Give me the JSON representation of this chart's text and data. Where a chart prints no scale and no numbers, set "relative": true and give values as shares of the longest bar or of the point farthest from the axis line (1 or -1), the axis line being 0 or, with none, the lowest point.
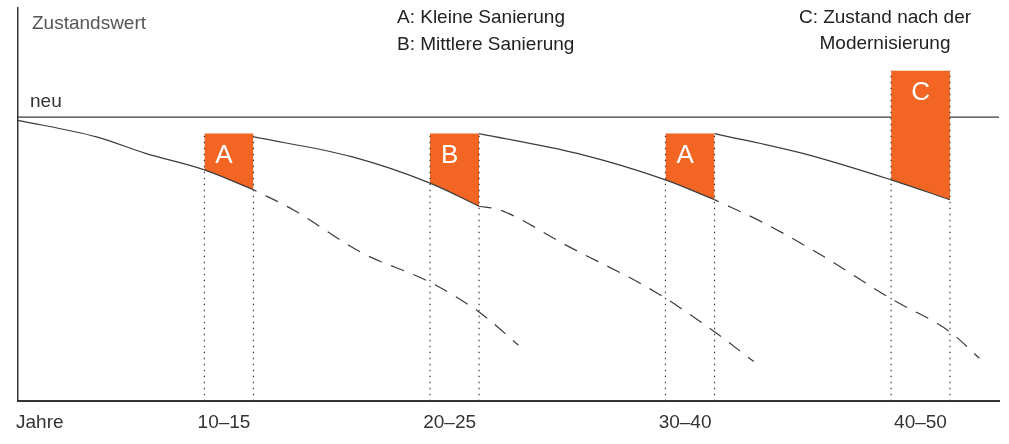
{
  "chart_data": {
    "type": "line",
    "relative": true,
    "ylabel": "Zustandswert",
    "xlabel": "Jahre",
    "legend": false,
    "grid": false,
    "marker": "none",
    "categories": [
      null,
      null,
      null,
      null,
      null,
      null,
      null,
      null,
      null,
      null,
      null,
      null,
      null,
      null,
      null,
      null,
      null,
      null,
      null,
      null,
      null,
      "10–15",
      null,
      null,
      null,
      null,
      null,
      null,
      null,
      null,
      null,
      null,
      null,
      null,
      null,
      null,
      null,
      null,
      null,
      null,
      null,
      null,
      null,
      null,
      "20–25",
      null,
      null,
      null,
      null,
      null,
      null,
      null,
      null,
      null,
      null,
      null,
      null,
      null,
      null,
      null,
      null,
      null,
      null,
      null,
      null,
      null,
      null,
      null,
      "30–40",
      null,
      null,
      null,
      null,
      null,
      null,
      null,
      null,
      null,
      null,
      null,
      null,
      null,
      null,
      null,
      null,
      null,
      null,
      null,
      null,
      null,
      null,
      null,
      "40–50",
      null,
      null,
      null,
      null,
      null,
      null,
      null,
      null
    ],
    "series": [
      {
        "color": "#3c3c3c",
        "line_style": "solid",
        "values": [
          0.85,
          null,
          null,
          null,
          null,
          null,
          null,
          null,
          0.8,
          null,
          null,
          null,
          null,
          0.75,
          null,
          null,
          null,
          null,
          null,
          0.7,
          null,
          null,
          null,
          null,
          0.64,
          null,
          null,
          null,
          null,
          null,
          null,
          null,
          null,
          null,
          null,
          null,
          null,
          null,
          null,
          null,
          null,
          null,
          null,
          null,
          null,
          null,
          null,
          null,
          null,
          null,
          null,
          null,
          null,
          null,
          null,
          null,
          null,
          null,
          null,
          null,
          null,
          null,
          null,
          null,
          null,
          null,
          null,
          null,
          null,
          null,
          null,
          null,
          null,
          null,
          null,
          null,
          null,
          null,
          null,
          null,
          null,
          null,
          null,
          null,
          null,
          null,
          null,
          null,
          null,
          null,
          null,
          null,
          null,
          null,
          null,
          null,
          null,
          null,
          null,
          null,
          null
        ]
      },
      {
        "color": "#3c3c3c",
        "line_style": "dashed",
        "values": [
          null,
          null,
          null,
          null,
          null,
          null,
          null,
          null,
          null,
          null,
          null,
          null,
          null,
          null,
          null,
          null,
          null,
          null,
          null,
          null,
          null,
          null,
          null,
          null,
          0.64,
          null,
          null,
          null,
          0.58,
          null,
          null,
          null,
          null,
          null,
          null,
          0.45,
          null,
          null,
          null,
          null,
          null,
          null,
          0.36,
          null,
          null,
          null,
          null,
          0.27,
          null,
          null,
          null,
          0.17,
          null,
          null,
          null,
          null,
          null,
          null,
          null,
          null,
          null,
          null,
          null,
          null,
          null,
          null,
          null,
          null,
          null,
          null,
          null,
          null,
          null,
          null,
          null,
          null,
          null,
          null,
          null,
          null,
          null,
          null,
          null,
          null,
          null,
          null,
          null,
          null,
          null,
          null,
          null,
          null,
          null,
          null,
          null,
          null,
          null,
          null,
          null,
          null,
          null
        ]
      },
      {
        "color": "#3c3c3c",
        "line_style": "solid",
        "values": [
          null,
          null,
          null,
          null,
          null,
          null,
          null,
          null,
          null,
          null,
          null,
          null,
          null,
          null,
          null,
          null,
          null,
          null,
          null,
          null,
          null,
          null,
          null,
          null,
          0.8,
          null,
          null,
          null,
          null,
          null,
          null,
          null,
          null,
          null,
          0.74,
          null,
          null,
          null,
          null,
          null,
          null,
          null,
          0.66,
          null,
          null,
          null,
          null,
          0.59,
          null,
          null,
          null,
          null,
          null,
          null,
          null,
          null,
          null,
          null,
          null,
          null,
          null,
          null,
          null,
          null,
          null,
          null,
          null,
          null,
          null,
          null,
          null,
          null,
          null,
          null,
          null,
          null,
          null,
          null,
          null,
          null,
          null,
          null,
          null,
          null,
          null,
          null,
          null,
          null,
          null,
          null,
          null,
          null,
          null,
          null,
          null,
          null,
          null,
          null,
          null,
          null,
          null
        ]
      },
      {
        "color": "#3c3c3c",
        "line_style": "dashed",
        "values": [
          null,
          null,
          null,
          null,
          null,
          null,
          null,
          null,
          null,
          null,
          null,
          null,
          null,
          null,
          null,
          null,
          null,
          null,
          null,
          null,
          null,
          null,
          null,
          null,
          null,
          null,
          null,
          null,
          null,
          null,
          null,
          null,
          null,
          null,
          null,
          null,
          null,
          null,
          null,
          null,
          null,
          null,
          null,
          null,
          null,
          null,
          null,
          0.59,
          null,
          0.58,
          null,
          null,
          null,
          null,
          null,
          null,
          0.47,
          null,
          null,
          null,
          null,
          null,
          null,
          null,
          null,
          0.33,
          null,
          null,
          null,
          null,
          null,
          0.21,
          null,
          null,
          null,
          0.12,
          null,
          null,
          null,
          null,
          null,
          null,
          null,
          null,
          null,
          null,
          null,
          null,
          null,
          null,
          null,
          null,
          null,
          null,
          null,
          null,
          null,
          null,
          null,
          null,
          null
        ]
      },
      {
        "color": "#3c3c3c",
        "line_style": "solid",
        "values": [
          null,
          null,
          null,
          null,
          null,
          null,
          null,
          null,
          null,
          null,
          null,
          null,
          null,
          null,
          null,
          null,
          null,
          null,
          null,
          null,
          null,
          null,
          null,
          null,
          null,
          null,
          null,
          null,
          null,
          null,
          null,
          null,
          null,
          null,
          null,
          null,
          null,
          null,
          null,
          null,
          null,
          null,
          null,
          null,
          null,
          null,
          null,
          0.81,
          null,
          null,
          null,
          null,
          null,
          null,
          null,
          null,
          null,
          0.75,
          null,
          null,
          null,
          null,
          null,
          null,
          null,
          null,
          0.67,
          null,
          null,
          null,
          null,
          0.61,
          null,
          null,
          null,
          null,
          null,
          null,
          null,
          null,
          null,
          null,
          null,
          null,
          null,
          null,
          null,
          null,
          null,
          null,
          null,
          null,
          null,
          null,
          null,
          null,
          null,
          null,
          null,
          null,
          null
        ]
      },
      {
        "color": "#3c3c3c",
        "line_style": "dashed",
        "values": [
          null,
          null,
          null,
          null,
          null,
          null,
          null,
          null,
          null,
          null,
          null,
          null,
          null,
          null,
          null,
          null,
          null,
          null,
          null,
          null,
          null,
          null,
          null,
          null,
          null,
          null,
          null,
          null,
          null,
          null,
          null,
          null,
          null,
          null,
          null,
          null,
          null,
          null,
          null,
          null,
          null,
          null,
          null,
          null,
          null,
          null,
          null,
          null,
          null,
          null,
          null,
          null,
          null,
          null,
          null,
          null,
          null,
          null,
          null,
          null,
          null,
          null,
          null,
          null,
          null,
          null,
          null,
          null,
          null,
          null,
          null,
          0.61,
          null,
          null,
          null,
          null,
          0.54,
          null,
          null,
          null,
          null,
          null,
          0.44,
          null,
          null,
          null,
          null,
          null,
          null,
          0.31,
          null,
          null,
          null,
          null,
          null,
          0.21,
          null,
          null,
          0.13,
          null,
          null
        ]
      },
      {
        "color": "#3c3c3c",
        "line_style": "solid",
        "values": [
          null,
          null,
          null,
          null,
          null,
          null,
          null,
          null,
          null,
          null,
          null,
          null,
          null,
          null,
          null,
          null,
          null,
          null,
          null,
          null,
          null,
          null,
          null,
          null,
          null,
          null,
          null,
          null,
          null,
          null,
          null,
          null,
          null,
          null,
          null,
          null,
          null,
          null,
          null,
          null,
          null,
          null,
          null,
          null,
          null,
          null,
          null,
          null,
          null,
          null,
          null,
          null,
          null,
          null,
          null,
          null,
          null,
          null,
          null,
          null,
          null,
          null,
          null,
          null,
          null,
          null,
          null,
          null,
          null,
          null,
          null,
          0.81,
          null,
          null,
          null,
          null,
          null,
          null,
          null,
          null,
          0.75,
          null,
          null,
          null,
          null,
          null,
          null,
          null,
          null,
          0.67,
          null,
          null,
          null,
          null,
          null,
          0.61,
          null,
          null,
          null,
          null,
          null
        ]
      },
      {
        "type": "area",
        "color": "#f26522",
        "values": [
          null,
          null,
          null,
          null,
          null,
          null,
          null,
          null,
          null,
          null,
          null,
          null,
          null,
          null,
          null,
          null,
          null,
          null,
          null,
          0.81,
          null,
          0.81,
          null,
          null,
          0.81,
          null,
          null,
          null,
          null,
          null,
          null,
          null,
          null,
          null,
          null,
          null,
          null,
          null,
          null,
          null,
          null,
          null,
          null,
          null,
          null,
          null,
          null,
          null,
          null,
          null,
          null,
          null,
          null,
          null,
          null,
          null,
          null,
          null,
          null,
          null,
          null,
          null,
          null,
          null,
          null,
          null,
          null,
          null,
          null,
          null,
          null,
          null,
          null,
          null,
          null,
          null,
          null,
          null,
          null,
          null,
          null,
          null,
          null,
          null,
          null,
          null,
          null,
          null,
          null,
          null,
          null,
          null,
          null,
          null,
          null,
          null,
          null,
          null,
          null,
          null,
          null
        ]
      },
      {
        "type": "area",
        "color": "#f26522",
        "values": [
          null,
          null,
          null,
          null,
          null,
          null,
          null,
          null,
          null,
          null,
          null,
          null,
          null,
          null,
          null,
          null,
          null,
          null,
          null,
          null,
          null,
          null,
          null,
          null,
          null,
          null,
          null,
          null,
          null,
          null,
          null,
          null,
          null,
          null,
          null,
          null,
          null,
          null,
          null,
          null,
          null,
          null,
          0.81,
          null,
          0.81,
          null,
          null,
          0.81,
          null,
          null,
          null,
          null,
          null,
          null,
          null,
          null,
          null,
          null,
          null,
          null,
          null,
          null,
          null,
          null,
          null,
          null,
          null,
          null,
          null,
          null,
          null,
          null,
          null,
          null,
          null,
          null,
          null,
          null,
          null,
          null,
          null,
          null,
          null,
          null,
          null,
          null,
          null,
          null,
          null,
          null,
          null,
          null,
          null,
          null,
          null,
          null,
          null,
          null,
          null,
          null,
          null
        ]
      },
      {
        "type": "area",
        "color": "#f26522",
        "values": [
          null,
          null,
          null,
          null,
          null,
          null,
          null,
          null,
          null,
          null,
          null,
          null,
          null,
          null,
          null,
          null,
          null,
          null,
          null,
          null,
          null,
          null,
          null,
          null,
          null,
          null,
          null,
          null,
          null,
          null,
          null,
          null,
          null,
          null,
          null,
          null,
          null,
          null,
          null,
          null,
          null,
          null,
          null,
          null,
          null,
          null,
          null,
          null,
          null,
          null,
          null,
          null,
          null,
          null,
          null,
          null,
          null,
          null,
          null,
          null,
          null,
          null,
          null,
          null,
          null,
          null,
          0.81,
          null,
          0.81,
          null,
          null,
          0.81,
          null,
          null,
          null,
          null,
          null,
          null,
          null,
          null,
          null,
          null,
          null,
          null,
          null,
          null,
          null,
          null,
          null,
          null,
          null,
          null,
          null,
          null,
          null,
          null,
          null,
          null,
          null,
          null,
          null
        ]
      },
      {
        "type": "area",
        "color": "#f26522",
        "values": [
          null,
          null,
          null,
          null,
          null,
          null,
          null,
          null,
          null,
          null,
          null,
          null,
          null,
          null,
          null,
          null,
          null,
          null,
          null,
          null,
          null,
          null,
          null,
          null,
          null,
          null,
          null,
          null,
          null,
          null,
          null,
          null,
          null,
          null,
          null,
          null,
          null,
          null,
          null,
          null,
          null,
          null,
          null,
          null,
          null,
          null,
          null,
          null,
          null,
          null,
          null,
          null,
          null,
          null,
          null,
          null,
          null,
          null,
          null,
          null,
          null,
          null,
          null,
          null,
          null,
          null,
          null,
          null,
          null,
          null,
          null,
          null,
          null,
          null,
          null,
          null,
          null,
          null,
          null,
          null,
          null,
          null,
          null,
          null,
          null,
          null,
          null,
          null,
          null,
          1,
          null,
          null,
          1,
          null,
          null,
          1,
          null,
          null,
          null,
          null,
          null
        ]
      }
    ],
    "ref_lines": [
      {
        "axis": "y",
        "value": 0.86,
        "label": "neu",
        "color": "#3c3c3c",
        "line_style": "solid"
      }
    ],
    "annotations": [
      "A: Kleine Sanierung",
      "B: Mittlere Sanierung",
      "C: Zustand nach der Modernisierung",
      {
        "text": "A",
        "x": "10–15",
        "y": 0.81
      },
      {
        "text": "B",
        "x": "20–25",
        "y": 0.81
      },
      {
        "text": "A",
        "x": "30–40",
        "y": 0.81
      },
      {
        "text": "C",
        "x": "40–50",
        "y": 1
      }
    ]
  }
}
